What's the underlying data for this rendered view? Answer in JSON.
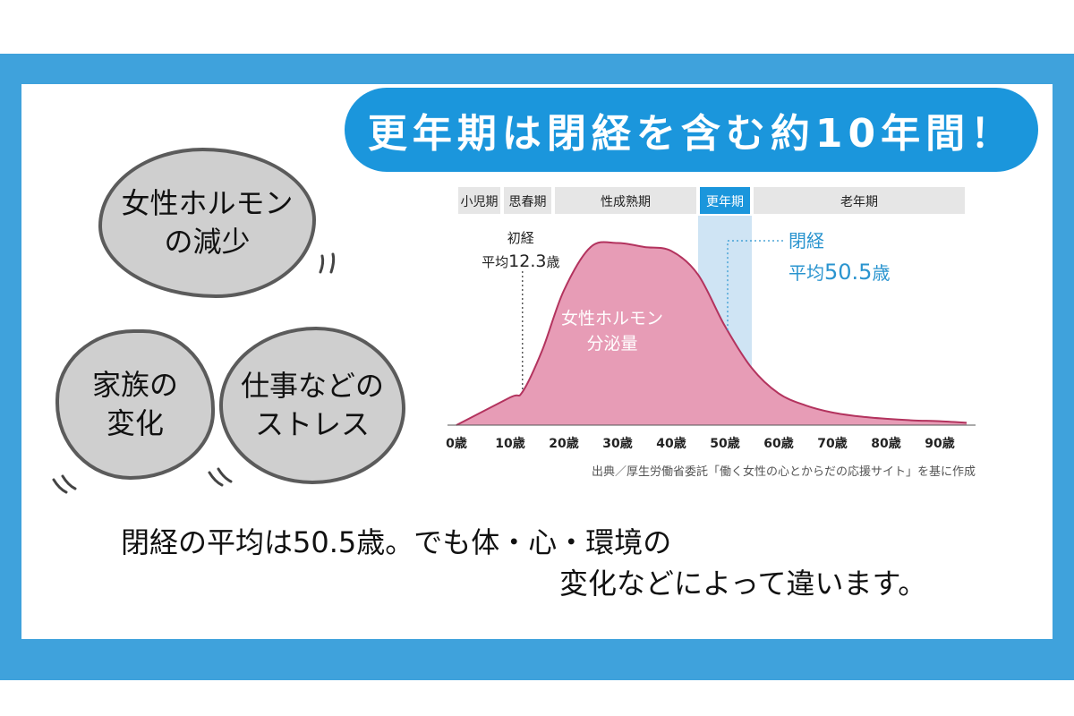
{
  "title": "更年期は閉経を含む約10年間！",
  "bubbles": {
    "hormone": [
      "女性ホルモン",
      "の減少"
    ],
    "family": [
      "家族の",
      "変化"
    ],
    "stress": [
      "仕事などの",
      "ストレス"
    ]
  },
  "caption": {
    "line1": "閉経の平均は50.5歳。でも体・心・環境の",
    "line2": "変化などによって違います。"
  },
  "colors": {
    "frame": "#3fa2dc",
    "banner": "#1b96dc",
    "curve_fill": "#e79cb6",
    "curve_line": "#b3335e",
    "menopause_band": "#cfe4f4",
    "menopause_text": "#2a94cf"
  },
  "chart_data": {
    "type": "area",
    "x": [
      0,
      10,
      12.3,
      16,
      20,
      25,
      30,
      35,
      40,
      45,
      50,
      55,
      60,
      65,
      70,
      75,
      80,
      85,
      90,
      95
    ],
    "values": [
      0,
      35,
      42,
      95,
      170,
      225,
      230,
      225,
      220,
      190,
      125,
      72,
      40,
      25,
      16,
      11,
      8,
      6,
      5,
      3
    ],
    "series": [
      {
        "name": "女性ホルモン分泌量"
      }
    ],
    "curve_label": [
      "女性ホルモン",
      "分泌量"
    ],
    "xlim": [
      0,
      95
    ],
    "ylim": [
      0,
      260
    ],
    "x_ticks": [
      "0歳",
      "10歳",
      "20歳",
      "30歳",
      "40歳",
      "50歳",
      "60歳",
      "70歳",
      "80歳",
      "90歳"
    ],
    "x_tick_values": [
      0,
      10,
      20,
      30,
      40,
      50,
      60,
      70,
      80,
      90
    ],
    "periods": [
      {
        "label": "小児期",
        "start": 0,
        "end": 8.5
      },
      {
        "label": "思春期",
        "start": 8.5,
        "end": 18
      },
      {
        "label": "性成熟期",
        "start": 18,
        "end": 45
      },
      {
        "label": "更年期",
        "start": 45,
        "end": 55,
        "highlight": true
      },
      {
        "label": "老年期",
        "start": 55,
        "end": 95
      }
    ],
    "annotations": [
      {
        "lines": [
          "初経",
          "平均",
          "12.3",
          "歳"
        ],
        "x": 12.3
      },
      {
        "lines": [
          "閉経",
          "平均",
          "50.5",
          "歳"
        ],
        "x": 50.5
      }
    ],
    "source": "出典／厚生労働省委託「働く女性の心とからだの応援サイト」を基に作成",
    "grid": false
  }
}
